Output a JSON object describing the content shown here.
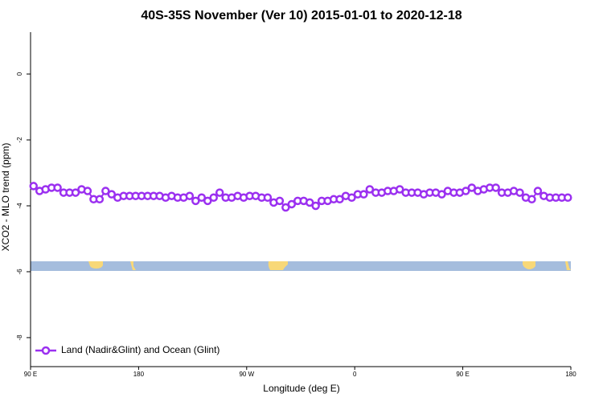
{
  "chart_data": {
    "type": "line",
    "title": "40S-35S November (Ver 10)   2015-01-01 to 2020-12-18",
    "x_label": "Longitude (deg E)",
    "y_label": "XCO2 - MLO trend (ppm)",
    "x": [
      92.5,
      97.5,
      102.5,
      107.5,
      112.5,
      117.5,
      122.5,
      127.5,
      132.5,
      137.5,
      142.5,
      147.5,
      152.5,
      157.5,
      162.5,
      167.5,
      172.5,
      177.5,
      182.5,
      187.5,
      192.5,
      197.5,
      202.5,
      207.5,
      212.5,
      217.5,
      222.5,
      227.5,
      232.5,
      237.5,
      242.5,
      247.5,
      252.5,
      257.5,
      262.5,
      267.5,
      272.5,
      277.5,
      282.5,
      287.5,
      292.5,
      297.5,
      302.5,
      307.5,
      312.5,
      317.5,
      322.5,
      327.5,
      332.5,
      337.5,
      342.5,
      347.5,
      352.5,
      357.5,
      362.5,
      367.5,
      372.5,
      377.5,
      382.5,
      387.5,
      392.5,
      397.5,
      402.5,
      407.5,
      412.5,
      417.5,
      422.5,
      427.5,
      432.5,
      437.5,
      442.5,
      447.5,
      452.5,
      457.5,
      462.5,
      467.5,
      472.5,
      477.5,
      482.5,
      487.5,
      492.5,
      497.5,
      502.5,
      507.5,
      512.5,
      517.5,
      522.5,
      527.5,
      532.5,
      537.5
    ],
    "series": [
      {
        "name": "Land (Nadir&Glint) and Ocean (Glint)",
        "color": "#9b30f0",
        "values": [
          -3.4,
          -3.55,
          -3.5,
          -3.45,
          -3.45,
          -3.6,
          -3.6,
          -3.6,
          -3.5,
          -3.55,
          -3.8,
          -3.8,
          -3.55,
          -3.65,
          -3.75,
          -3.7,
          -3.7,
          -3.7,
          -3.7,
          -3.7,
          -3.7,
          -3.7,
          -3.75,
          -3.7,
          -3.75,
          -3.75,
          -3.7,
          -3.85,
          -3.75,
          -3.85,
          -3.75,
          -3.6,
          -3.75,
          -3.75,
          -3.7,
          -3.75,
          -3.7,
          -3.7,
          -3.75,
          -3.75,
          -3.9,
          -3.85,
          -4.05,
          -3.95,
          -3.85,
          -3.85,
          -3.9,
          -4.0,
          -3.85,
          -3.85,
          -3.8,
          -3.8,
          -3.7,
          -3.75,
          -3.65,
          -3.65,
          -3.5,
          -3.6,
          -3.6,
          -3.55,
          -3.55,
          -3.5,
          -3.6,
          -3.6,
          -3.6,
          -3.65,
          -3.6,
          -3.6,
          -3.65,
          -3.55,
          -3.6,
          -3.6,
          -3.55,
          -3.45,
          -3.55,
          -3.5,
          -3.45,
          -3.45,
          -3.6,
          -3.6,
          -3.55,
          -3.6,
          -3.75,
          -3.8,
          -3.55,
          -3.7,
          -3.75,
          -3.75,
          -3.75,
          -3.75
        ]
      }
    ],
    "xlim": [
      90,
      540
    ],
    "ylim": [
      -8.88,
      1.27
    ],
    "xticks": [
      {
        "value": 90,
        "label": "90 E"
      },
      180,
      {
        "value": 270,
        "label": "90 W"
      },
      {
        "value": 360,
        "label": "0"
      },
      {
        "value": 450,
        "label": "90 E"
      },
      {
        "value": 540,
        "label": "180"
      }
    ],
    "yticks": [
      0,
      -2,
      -4,
      -6,
      -8
    ],
    "legend": "bottom-left"
  }
}
